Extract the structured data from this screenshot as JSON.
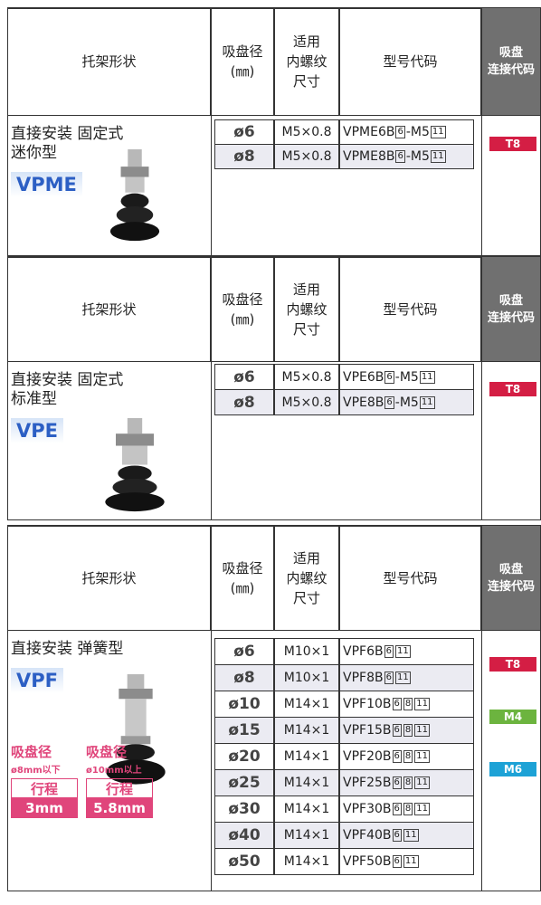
{
  "header": {
    "shape": "托架形状",
    "diameter": [
      "吸盘径",
      "(㎜)"
    ],
    "thread": [
      "适用",
      "内螺纹",
      "尺寸"
    ],
    "model": "型号代码",
    "code": [
      "吸盘",
      "连接代码"
    ]
  },
  "sections": [
    {
      "mount": [
        "直接安装 固定式",
        "迷你型"
      ],
      "series": "VPME",
      "rows": [
        {
          "diameter": "ø6",
          "thread": "M5×0.8",
          "model": [
            {
              "text": "VPME6B"
            },
            {
              "box": "6"
            },
            {
              "text": "-M5"
            },
            {
              "box": "11"
            }
          ],
          "code": "T8",
          "code_color": "#d41e44"
        },
        {
          "diameter": "ø8",
          "thread": "M5×0.8",
          "model": [
            {
              "text": "VPME8B"
            },
            {
              "box": "6"
            },
            {
              "text": "-M5"
            },
            {
              "box": "11"
            }
          ],
          "code": null
        }
      ]
    },
    {
      "mount": [
        "直接安装 固定式",
        "标准型"
      ],
      "series": "VPE",
      "rows": [
        {
          "diameter": "ø6",
          "thread": "M5×0.8",
          "model": [
            {
              "text": "VPE6B"
            },
            {
              "box": "6"
            },
            {
              "text": "-M5"
            },
            {
              "box": "11"
            }
          ],
          "code": "T8",
          "code_color": "#d41e44"
        },
        {
          "diameter": "ø8",
          "thread": "M5×0.8",
          "model": [
            {
              "text": "VPE8B"
            },
            {
              "box": "6"
            },
            {
              "text": "-M5"
            },
            {
              "box": "11"
            }
          ],
          "code": null
        }
      ]
    },
    {
      "mount": [
        "直接安装 弹簧型"
      ],
      "series": "VPF",
      "rows": [
        {
          "diameter": "ø6",
          "thread": "M10×1",
          "model": [
            {
              "text": "VPF6B"
            },
            {
              "box": "6"
            },
            {
              "box": "11"
            }
          ],
          "code": "T8",
          "code_color": "#d41e44"
        },
        {
          "diameter": "ø8",
          "thread": "M10×1",
          "model": [
            {
              "text": "VPF8B"
            },
            {
              "box": "6"
            },
            {
              "box": "11"
            }
          ],
          "code": null
        },
        {
          "diameter": "ø10",
          "thread": "M14×1",
          "model": [
            {
              "text": "VPF10B"
            },
            {
              "box": "6"
            },
            {
              "box": "8"
            },
            {
              "box": "11"
            }
          ],
          "code": "M4",
          "code_color": "#6cb43f"
        },
        {
          "diameter": "ø15",
          "thread": "M14×1",
          "model": [
            {
              "text": "VPF15B"
            },
            {
              "box": "6"
            },
            {
              "box": "8"
            },
            {
              "box": "11"
            }
          ],
          "code": null
        },
        {
          "diameter": "ø20",
          "thread": "M14×1",
          "model": [
            {
              "text": "VPF20B"
            },
            {
              "box": "6"
            },
            {
              "box": "8"
            },
            {
              "box": "11"
            }
          ],
          "code": "M6",
          "code_color": "#1da2d6"
        },
        {
          "diameter": "ø25",
          "thread": "M14×1",
          "model": [
            {
              "text": "VPF25B"
            },
            {
              "box": "6"
            },
            {
              "box": "8"
            },
            {
              "box": "11"
            }
          ],
          "code": null
        },
        {
          "diameter": "ø30",
          "thread": "M14×1",
          "model": [
            {
              "text": "VPF30B"
            },
            {
              "box": "6"
            },
            {
              "box": "8"
            },
            {
              "box": "11"
            }
          ],
          "code": null
        },
        {
          "diameter": "ø40",
          "thread": "M14×1",
          "model": [
            {
              "text": "VPF40B"
            },
            {
              "box": "6"
            },
            {
              "box": "11"
            }
          ],
          "code": null
        },
        {
          "diameter": "ø50",
          "thread": "M14×1",
          "model": [
            {
              "text": "VPF50B"
            },
            {
              "box": "6"
            },
            {
              "box": "11"
            }
          ],
          "code": null
        }
      ],
      "notes": [
        {
          "title": "吸盘径",
          "range": "ø8mm以下",
          "stroke_label": "行程",
          "stroke": "3mm"
        },
        {
          "title": "吸盘径",
          "range": "ø10mm以上",
          "stroke_label": "行程",
          "stroke": "5.8mm"
        }
      ]
    }
  ]
}
